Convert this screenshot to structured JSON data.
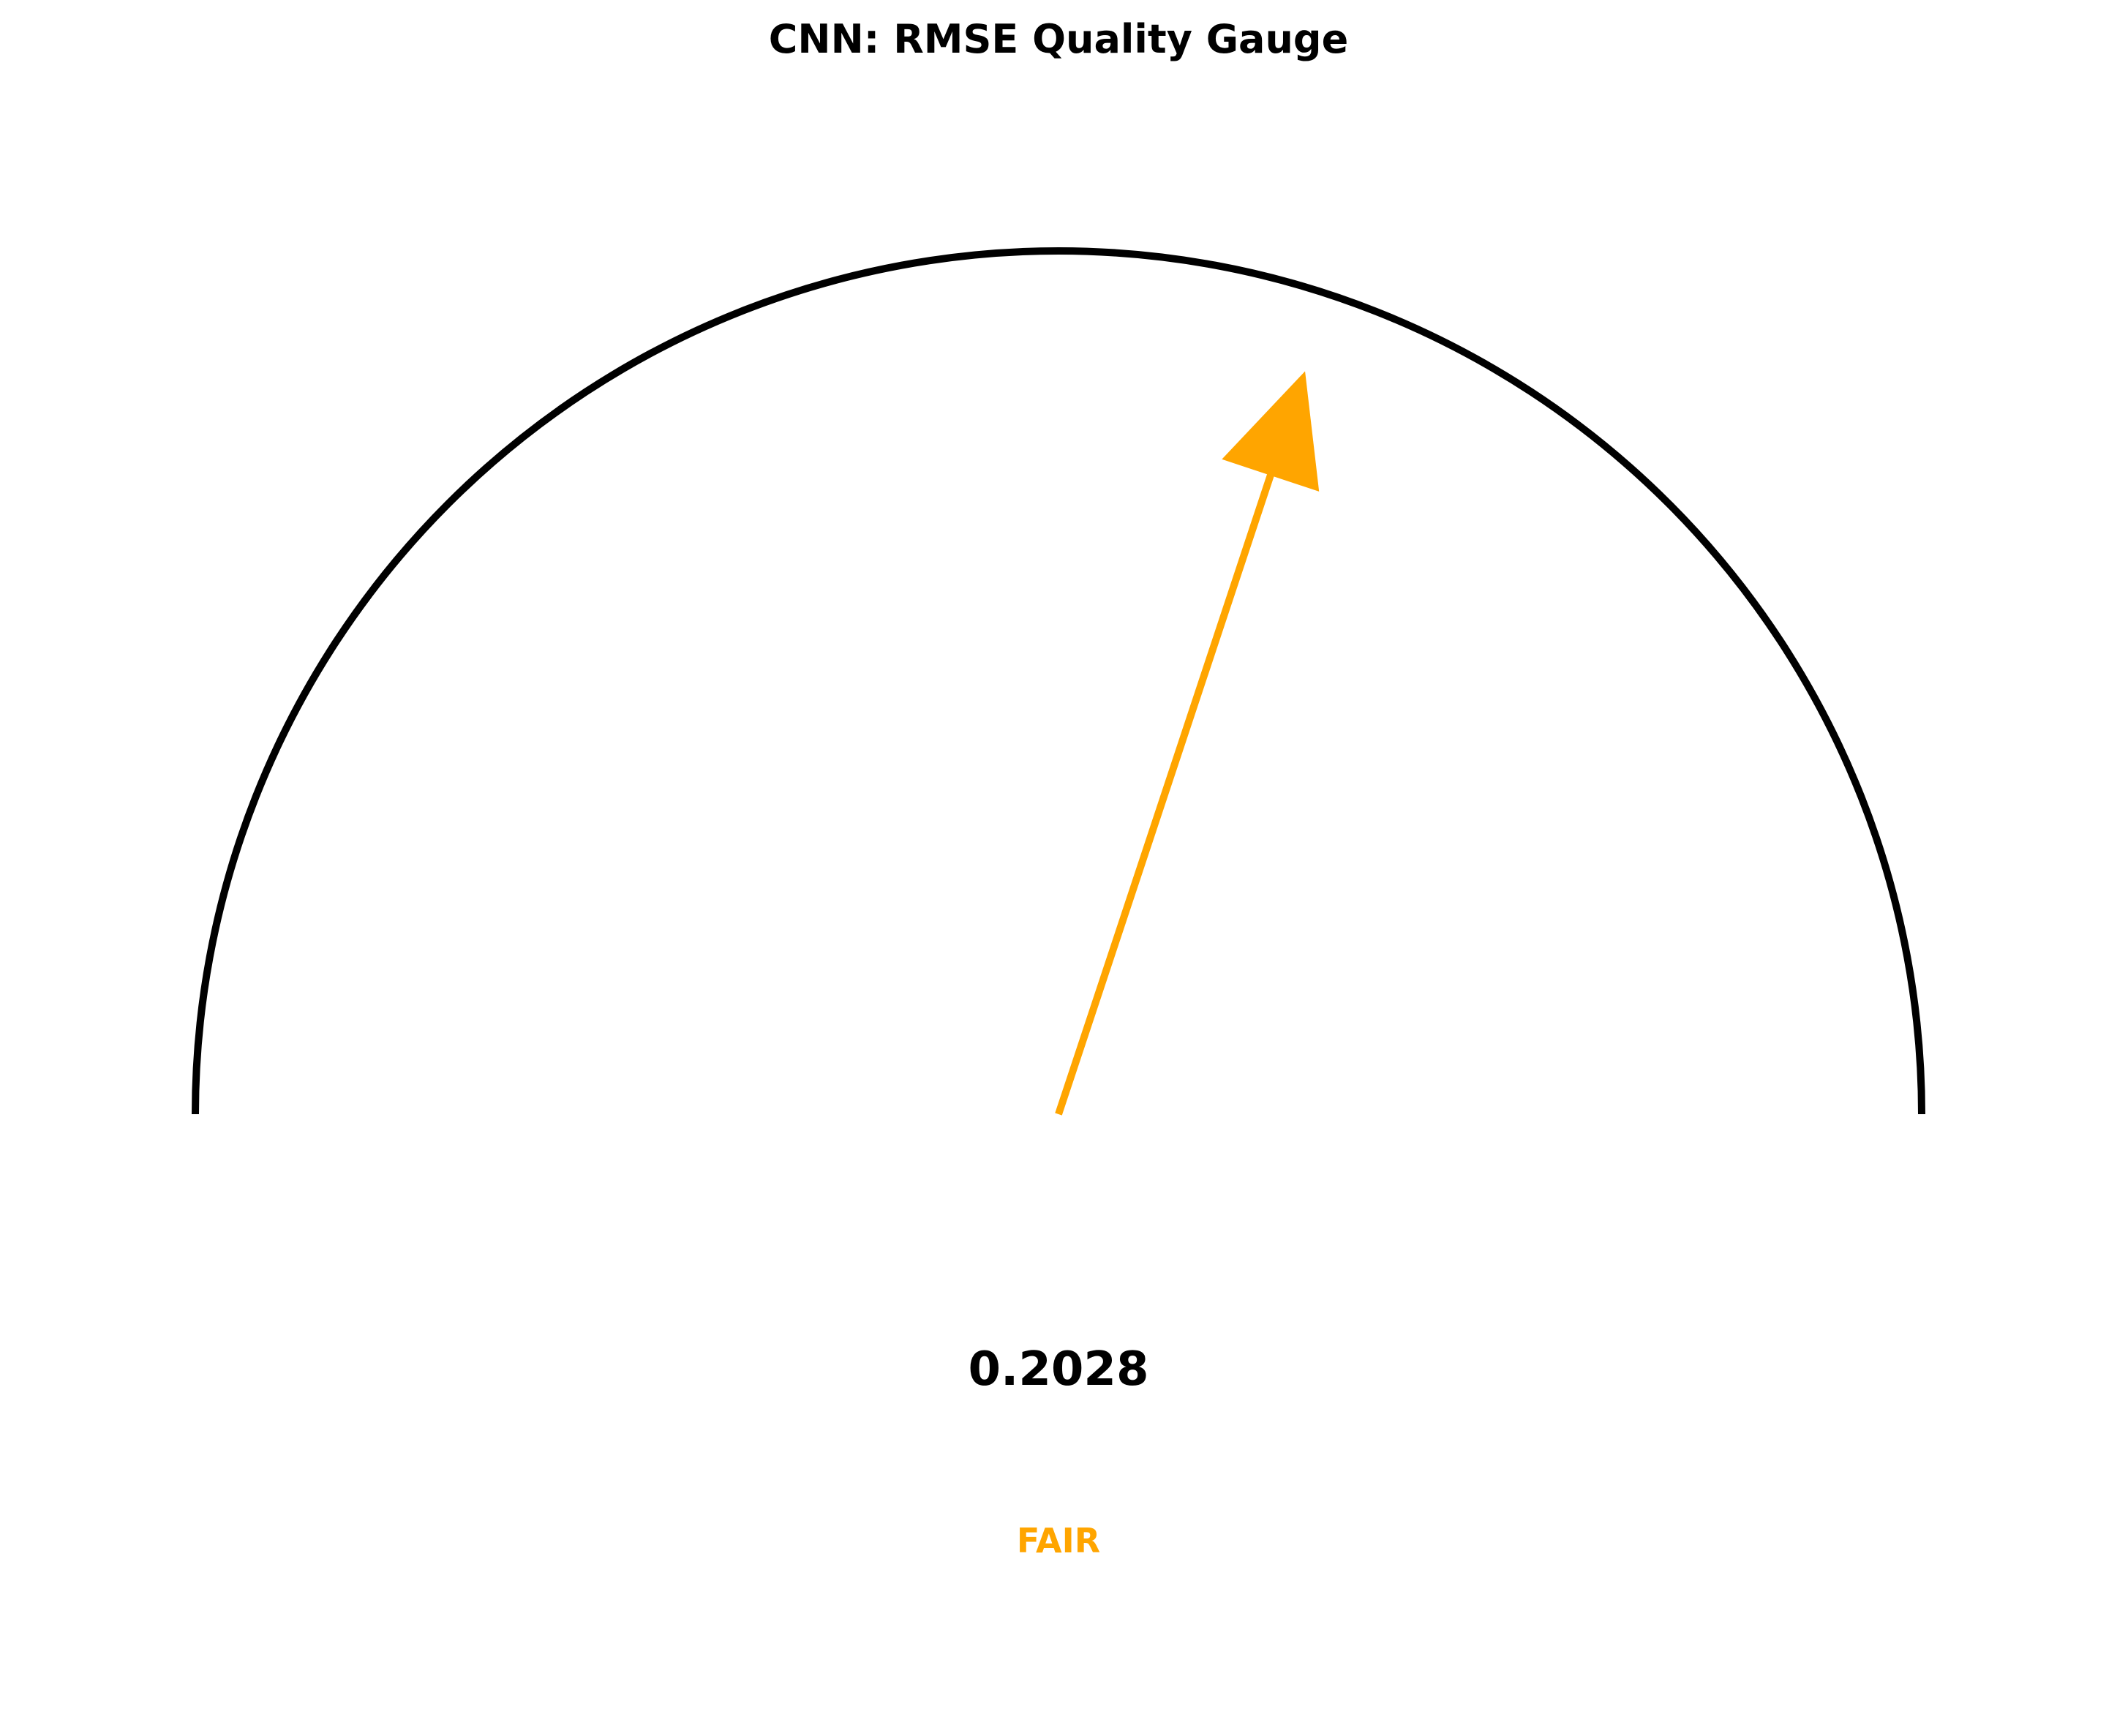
{
  "chart_data": {
    "type": "gauge",
    "title": "CNN: RMSE Quality Gauge",
    "metric": "RMSE",
    "value": 0.2028,
    "value_label": "0.2028",
    "needle_fraction": 0.602,
    "status_label": "FAIR",
    "colors": {
      "needle": "#FFA500",
      "status": "#FFA500",
      "arc": "#000000",
      "text": "#000000"
    }
  }
}
